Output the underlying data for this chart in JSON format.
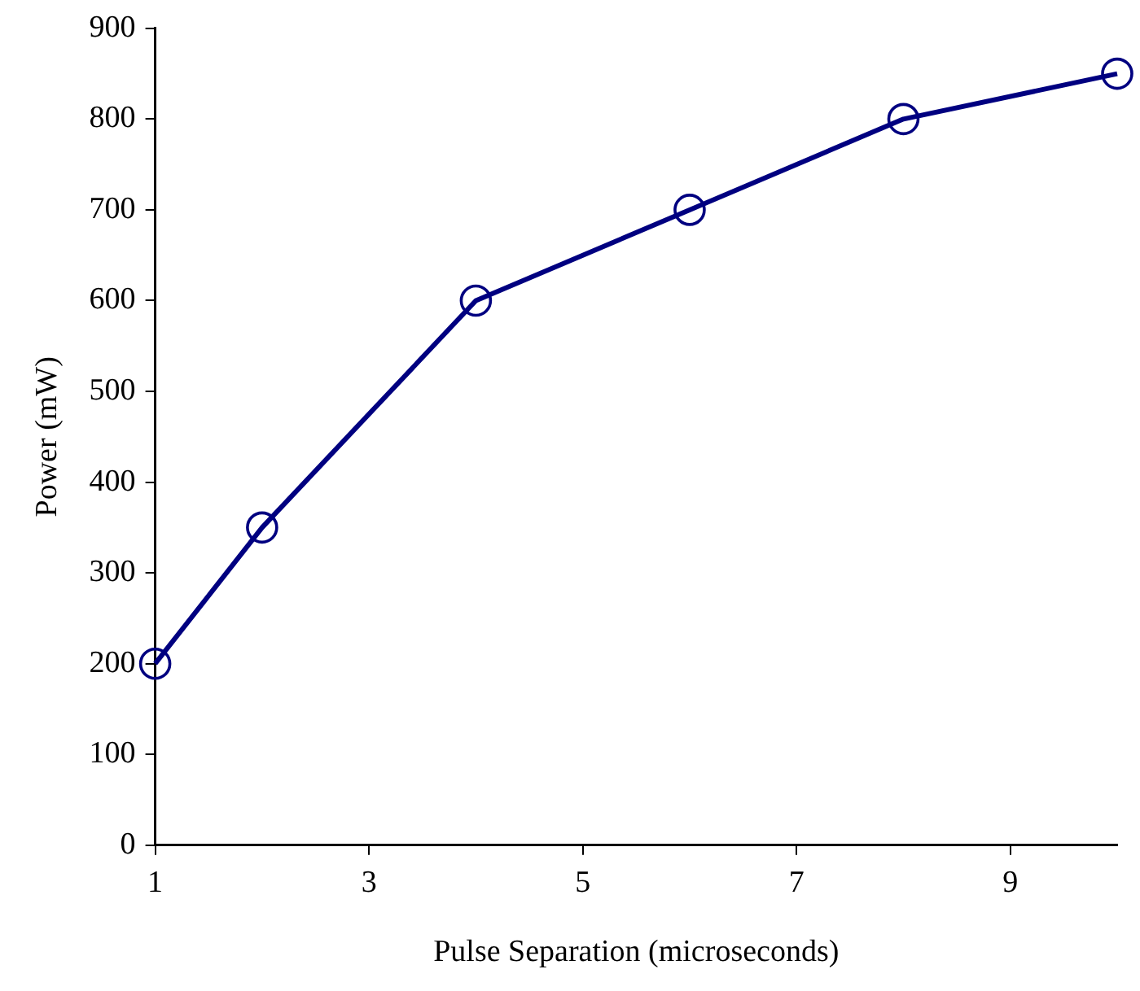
{
  "chart_data": {
    "type": "line",
    "xlabel": "Pulse Separation (microseconds)",
    "ylabel": "Power (mW)",
    "x": [
      1,
      2,
      4,
      6,
      8,
      10
    ],
    "series": [
      {
        "color": "#000080",
        "values": [
          200,
          350,
          600,
          700,
          800,
          850
        ]
      }
    ],
    "xlim": [
      1,
      10
    ],
    "xticks": [
      1,
      3,
      5,
      7,
      9
    ],
    "ylim": [
      0,
      900
    ],
    "yticks": [
      0,
      100,
      200,
      300,
      400,
      500,
      600,
      700,
      800,
      900
    ],
    "grid": false,
    "legend": false,
    "marker": "circle",
    "line_style": "solid"
  }
}
